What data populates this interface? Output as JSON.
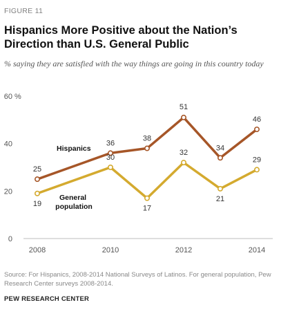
{
  "figure_label": "FIGURE 11",
  "title": "Hispanics More Positive about the Nation’s Direction than U.S. General Public",
  "subtitle": "% saying they are satisfied with the way things are going in this country today",
  "source": "Source: For Hispanics, 2008-2014 National Surveys of Latinos. For general population, Pew Research Center surveys 2008-2014.",
  "footer": "PEW RESEARCH CENTER",
  "chart_data": {
    "type": "line",
    "x": [
      2008,
      2010,
      2011,
      2012,
      2013,
      2014
    ],
    "x_ticks": [
      "2008",
      "2010",
      "2012",
      "2014"
    ],
    "y_ticks": [
      "0",
      "20",
      "40",
      "60"
    ],
    "y_unit": "%",
    "ylim": [
      0,
      60
    ],
    "xlim": [
      2008,
      2014
    ],
    "grid": false,
    "series": [
      {
        "name": "Hispanics",
        "values": [
          25,
          36,
          38,
          51,
          34,
          46
        ],
        "color": "#a65628"
      },
      {
        "name": "General population",
        "values": [
          19,
          30,
          17,
          32,
          21,
          29
        ],
        "color": "#d4aa2f"
      }
    ]
  }
}
